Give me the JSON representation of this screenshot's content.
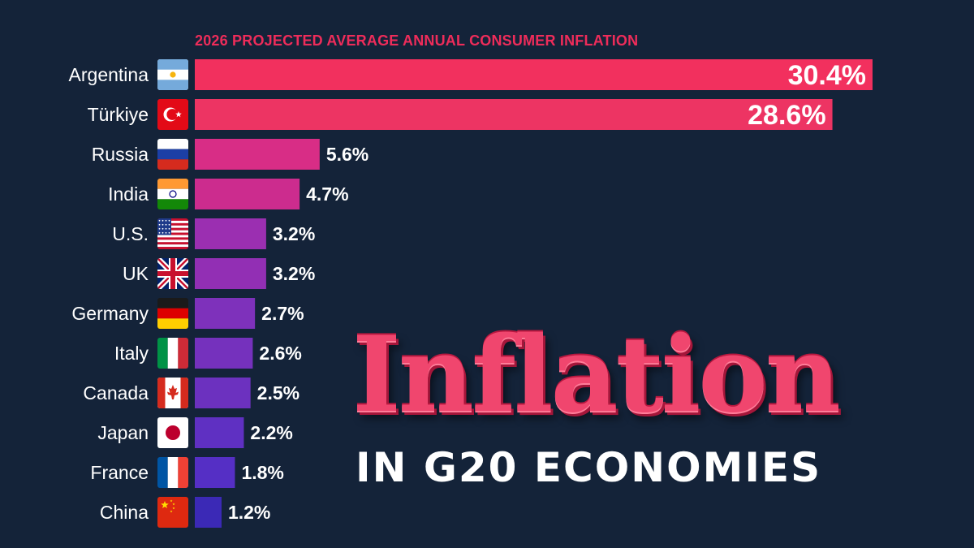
{
  "header": {
    "chart_title": "2026 PROJECTED AVERAGE ANNUAL CONSUMER INFLATION"
  },
  "headline": {
    "title": "Inflation",
    "subtitle": "IN G20 ECONOMIES"
  },
  "colors": {
    "background": "#142339",
    "accent": "#ee2c5a",
    "bar_gradient_top": "#f2305e",
    "bar_gradient_bottom": "#3b29b6"
  },
  "chart_data": {
    "type": "bar",
    "orientation": "horizontal",
    "title": "2026 PROJECTED AVERAGE ANNUAL CONSUMER INFLATION",
    "unit": "%",
    "categories": [
      "Argentina",
      "Türkiye",
      "Russia",
      "India",
      "U.S.",
      "UK",
      "Germany",
      "Italy",
      "Canada",
      "Japan",
      "France",
      "China"
    ],
    "values": [
      30.4,
      28.6,
      5.6,
      4.7,
      3.2,
      3.2,
      2.7,
      2.6,
      2.5,
      2.2,
      1.8,
      1.2
    ],
    "value_labels": [
      "30.4%",
      "28.6%",
      "5.6%",
      "4.7%",
      "3.2%",
      "3.2%",
      "2.7%",
      "2.6%",
      "2.5%",
      "2.2%",
      "1.8%",
      "1.2%"
    ],
    "flags": [
      "argentina-flag-icon",
      "turkiye-flag-icon",
      "russia-flag-icon",
      "india-flag-icon",
      "us-flag-icon",
      "uk-flag-icon",
      "germany-flag-icon",
      "italy-flag-icon",
      "canada-flag-icon",
      "japan-flag-icon",
      "france-flag-icon",
      "china-flag-icon"
    ],
    "bar_colors": [
      "#f2305e",
      "#ed3463",
      "#d82d86",
      "#cc2c8e",
      "#9b2fb1",
      "#922fb4",
      "#7e31bb",
      "#7531bd",
      "#6c31bf",
      "#5f30c2",
      "#552fc5",
      "#3b29b6"
    ],
    "xlim": [
      0,
      30.4
    ],
    "grid": false,
    "legend": "none"
  }
}
